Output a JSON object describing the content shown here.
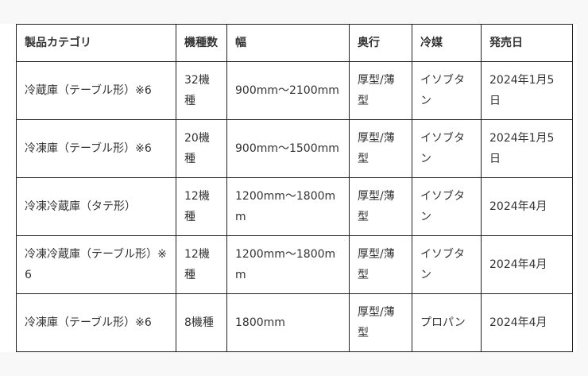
{
  "table": {
    "headers": [
      "製品カテゴリ",
      "機種数",
      "幅",
      "奥行",
      "冷媒",
      "発売日"
    ],
    "rows": [
      [
        "冷蔵庫（テーブル形）※6",
        "32機種",
        "900mm～2100mm",
        "厚型/薄型",
        "イソブタン",
        "2024年1月5日"
      ],
      [
        "冷凍庫（テーブル形）※6",
        "20機種",
        "900mm～1500mm",
        "厚型/薄型",
        "イソブタン",
        "2024年1月5日"
      ],
      [
        "冷凍冷蔵庫（タテ形）",
        "12機種",
        "1200mm～1800mm",
        "厚型/薄型",
        "イソブタン",
        "2024年4月"
      ],
      [
        "冷凍冷蔵庫（テーブル形）※6",
        "12機種",
        "1200mm～1800mm",
        "厚型/薄型",
        "イソブタン",
        "2024年4月"
      ],
      [
        "冷凍庫（テーブル形）※6",
        "8機種",
        "1800mm",
        "厚型/薄型",
        "プロパン",
        "2024年4月"
      ]
    ]
  }
}
